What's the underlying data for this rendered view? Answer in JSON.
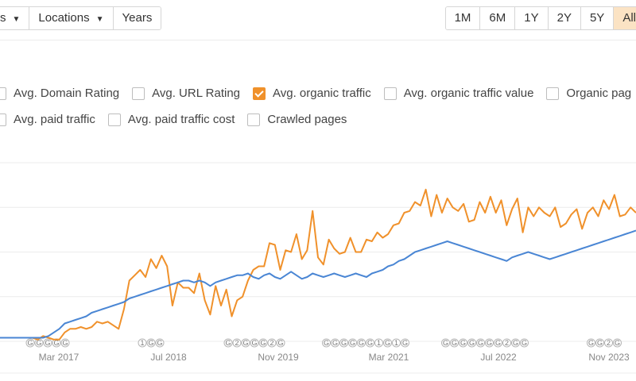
{
  "toolbar": {
    "first_label": "s",
    "locations_label": "Locations",
    "years_label": "Years"
  },
  "range": {
    "options": [
      "1M",
      "6M",
      "1Y",
      "2Y",
      "5Y",
      "All"
    ],
    "selected": "All"
  },
  "metrics": {
    "row1": [
      {
        "label": "Avg. Domain Rating",
        "checked": false
      },
      {
        "label": "Avg. URL Rating",
        "checked": false
      },
      {
        "label": "Avg. organic traffic",
        "checked": true
      },
      {
        "label": "Avg. organic traffic value",
        "checked": false
      },
      {
        "label": "Organic pag",
        "checked": false
      }
    ],
    "row2": [
      {
        "label": "Avg. paid traffic",
        "checked": false
      },
      {
        "label": "Avg. paid traffic cost",
        "checked": false
      },
      {
        "label": "Crawled pages",
        "checked": false
      }
    ]
  },
  "colors": {
    "orange": "#f0912b",
    "blue": "#4a86d4",
    "accent_bg": "#fbe3c4"
  },
  "chart_data": {
    "type": "line",
    "x_tick_labels": [
      "Mar 2017",
      "Jul 2018",
      "Nov 2019",
      "Mar 2021",
      "Jul 2022",
      "Nov 2023"
    ],
    "ylim": [
      0,
      100
    ],
    "grid": true,
    "series": [
      {
        "color": "#f0912b",
        "values": [
          2,
          2,
          2,
          2,
          2,
          2,
          2,
          1,
          3,
          2,
          1,
          1,
          5,
          7,
          7,
          8,
          7,
          8,
          11,
          10,
          11,
          9,
          7,
          18,
          34,
          37,
          40,
          36,
          46,
          41,
          48,
          42,
          20,
          33,
          30,
          30,
          27,
          38,
          23,
          15,
          31,
          20,
          29,
          14,
          23,
          25,
          34,
          40,
          42,
          42,
          55,
          54,
          40,
          51,
          50,
          60,
          46,
          51,
          73,
          47,
          43,
          57,
          52,
          49,
          50,
          58,
          50,
          50,
          57,
          56,
          61,
          58,
          60,
          65,
          66,
          72,
          73,
          78,
          76,
          85,
          70,
          82,
          72,
          80,
          75,
          73,
          77,
          67,
          68,
          78,
          72,
          81,
          72,
          79,
          65,
          74,
          80,
          61,
          75,
          70,
          75,
          72,
          70,
          75,
          64,
          66,
          71,
          74,
          63,
          72,
          75,
          70,
          79,
          74,
          82,
          70,
          71,
          75,
          72
        ]
      },
      {
        "color": "#4a86d4",
        "values": [
          2,
          2,
          2,
          2,
          2,
          2,
          2,
          2,
          2,
          3,
          5,
          7,
          10,
          11,
          12,
          13,
          14,
          16,
          17,
          18,
          19,
          20,
          21,
          22,
          24,
          25,
          26,
          27,
          28,
          29,
          30,
          31,
          32,
          33,
          34,
          34,
          33,
          34,
          33,
          31,
          33,
          34,
          35,
          36,
          37,
          37,
          38,
          36,
          35,
          37,
          38,
          36,
          35,
          37,
          39,
          37,
          35,
          36,
          38,
          37,
          36,
          37,
          38,
          37,
          36,
          37,
          38,
          37,
          36,
          38,
          39,
          40,
          42,
          43,
          45,
          46,
          48,
          50,
          51,
          52,
          53,
          54,
          55,
          56,
          55,
          54,
          53,
          52,
          51,
          50,
          49,
          48,
          47,
          46,
          45,
          47,
          48,
          49,
          50,
          49,
          48,
          47,
          46,
          47,
          48,
          49,
          50,
          51,
          52,
          53,
          54,
          55,
          56,
          57,
          58,
          59,
          60,
          61,
          62
        ]
      }
    ],
    "annotation_markers": [
      {
        "date_label": "Mar 2017",
        "markers": [
          "G",
          "G",
          "G",
          "G",
          "G"
        ]
      },
      {
        "date_label": "Jul 2018",
        "markers": [
          "1",
          "G",
          "G"
        ]
      },
      {
        "date_label": "Nov 2019",
        "markers": [
          "G",
          "2",
          "G",
          "G",
          "G",
          "2",
          "G"
        ]
      },
      {
        "date_label": "Mar 2021",
        "markers": [
          "G",
          "G",
          "G",
          "G",
          "G",
          "G",
          "1",
          "G",
          "1",
          "G"
        ]
      },
      {
        "date_label": "Jul 2022",
        "markers": [
          "G",
          "G",
          "G",
          "G",
          "G",
          "G",
          "G",
          "2",
          "G",
          "G"
        ]
      },
      {
        "date_label": "Nov 2023",
        "markers": [
          "G",
          "G",
          "2",
          "G"
        ]
      }
    ]
  }
}
